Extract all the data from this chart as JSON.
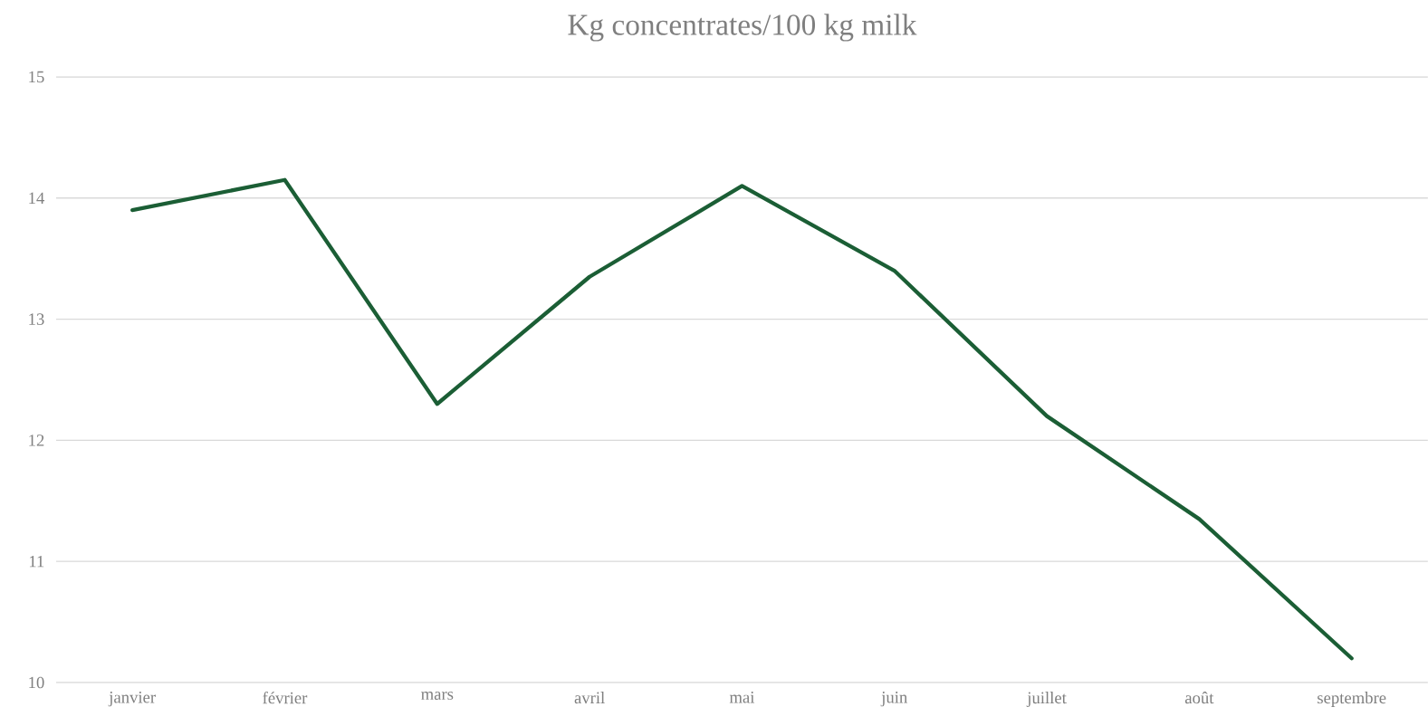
{
  "chart_data": {
    "type": "line",
    "title": "Kg concentrates/100 kg milk",
    "categories": [
      "janvier",
      "février",
      "mars",
      "avril",
      "mai",
      "juin",
      "juillet",
      "août",
      "septembre"
    ],
    "values": [
      13.9,
      14.15,
      12.3,
      13.35,
      14.1,
      13.4,
      12.2,
      11.35,
      10.2
    ],
    "color": "#1b5e35",
    "ylim": [
      10,
      15
    ],
    "yticks": [
      10,
      11,
      12,
      13,
      14,
      15
    ],
    "grid": "y"
  }
}
